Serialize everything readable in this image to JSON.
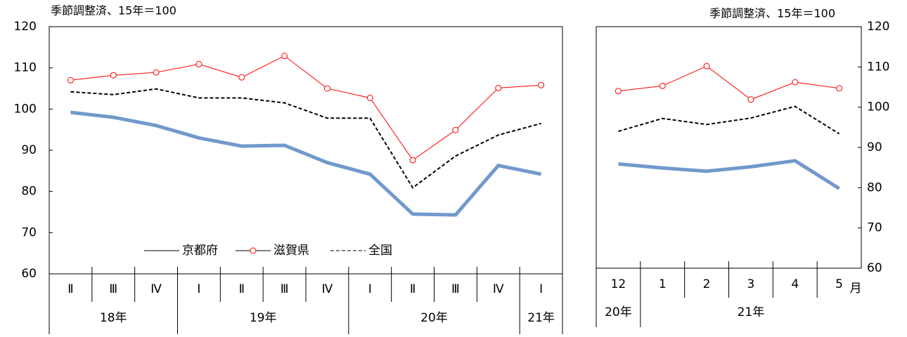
{
  "chart_data": [
    {
      "type": "line",
      "subtitle": "季節調整済、15年＝100",
      "categories": [
        "Ⅱ",
        "Ⅲ",
        "Ⅳ",
        "Ⅰ",
        "Ⅱ",
        "Ⅲ",
        "Ⅳ",
        "Ⅰ",
        "Ⅱ",
        "Ⅲ",
        "Ⅳ",
        "Ⅰ"
      ],
      "years": [
        "18年",
        null,
        null,
        "19年",
        null,
        null,
        null,
        "20年",
        null,
        null,
        null,
        "21年"
      ],
      "ylim": [
        60,
        120
      ],
      "yticks": [
        60,
        70,
        80,
        90,
        100,
        110,
        120
      ],
      "y_axis_side": "left",
      "legend": true,
      "series": [
        {
          "name": "京都府",
          "color": "#7199cc",
          "style": "thick",
          "values": [
            99.2,
            98,
            96,
            93,
            91,
            91.2,
            87,
            84.2,
            74.5,
            74.3,
            86.3,
            84.2
          ]
        },
        {
          "name": "滋賀県",
          "color": "#ff0000",
          "style": "marker",
          "values": [
            107,
            108.2,
            108.9,
            110.9,
            107.7,
            112.9,
            105,
            102.7,
            87.6,
            94.9,
            105.1,
            105.8
          ]
        },
        {
          "name": "全国",
          "color": "#000000",
          "style": "dashed",
          "values": [
            104.2,
            103.5,
            104.9,
            102.7,
            102.7,
            101.5,
            97.8,
            97.8,
            80.9,
            88.6,
            93.7,
            96.5
          ]
        }
      ]
    },
    {
      "type": "line",
      "subtitle": "季節調整済、15年＝100",
      "categories": [
        "12",
        "1",
        "2",
        "3",
        "4",
        "5"
      ],
      "x_unit": "月",
      "years": [
        "20年",
        "21年",
        null,
        null,
        null,
        null
      ],
      "ylim": [
        60,
        120
      ],
      "yticks": [
        60,
        70,
        80,
        90,
        100,
        110,
        120
      ],
      "y_axis_side": "right",
      "legend": false,
      "series": [
        {
          "color": "#7199cc",
          "style": "thick",
          "values": [
            85.9,
            84.9,
            84.1,
            85.2,
            86.7,
            79.8
          ]
        },
        {
          "color": "#ff0000",
          "style": "marker",
          "values": [
            104.0,
            105.3,
            110.2,
            101.9,
            106.2,
            104.7
          ]
        },
        {
          "color": "#000000",
          "style": "dashed",
          "values": [
            94.0,
            97.2,
            95.7,
            97.3,
            100.2,
            93.4
          ]
        }
      ]
    }
  ]
}
